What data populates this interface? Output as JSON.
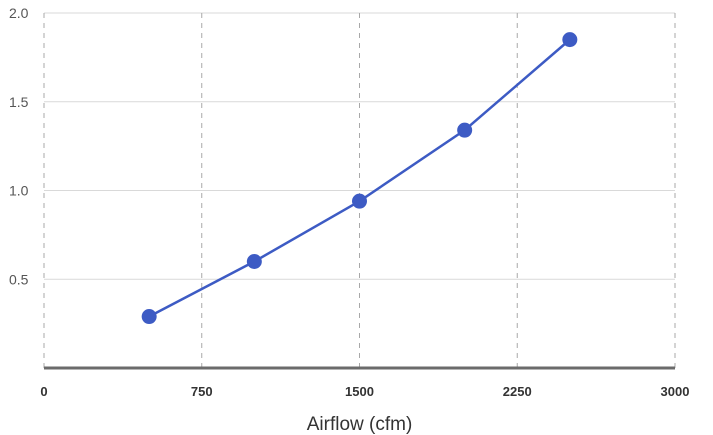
{
  "chart_data": {
    "type": "line",
    "title": "",
    "xlabel": "Airflow (cfm)",
    "ylabel": "",
    "x": [
      500,
      1000,
      1500,
      2000,
      2500
    ],
    "series": [
      {
        "values": [
          0.29,
          0.6,
          0.94,
          1.34,
          1.85
        ]
      }
    ],
    "xlim": [
      0,
      3000
    ],
    "ylim": [
      0,
      2.0
    ],
    "x_ticks": [
      0,
      750,
      1500,
      2250,
      3000
    ],
    "x_tick_labels": [
      "0",
      "750",
      "1500",
      "2250",
      "3000"
    ],
    "y_ticks": [
      0.5,
      1.0,
      1.5,
      2.0
    ],
    "y_tick_labels": [
      "0.5",
      "1.0",
      "1.5",
      "2.0"
    ],
    "grid": {
      "horizontal": "solid",
      "vertical": "dashed"
    },
    "legend": "none",
    "colors": {
      "series": "#3d5bc4",
      "grid_h": "#d9d9d9",
      "grid_v": "#a8a8a8",
      "axis": "#6b6b6b"
    }
  }
}
